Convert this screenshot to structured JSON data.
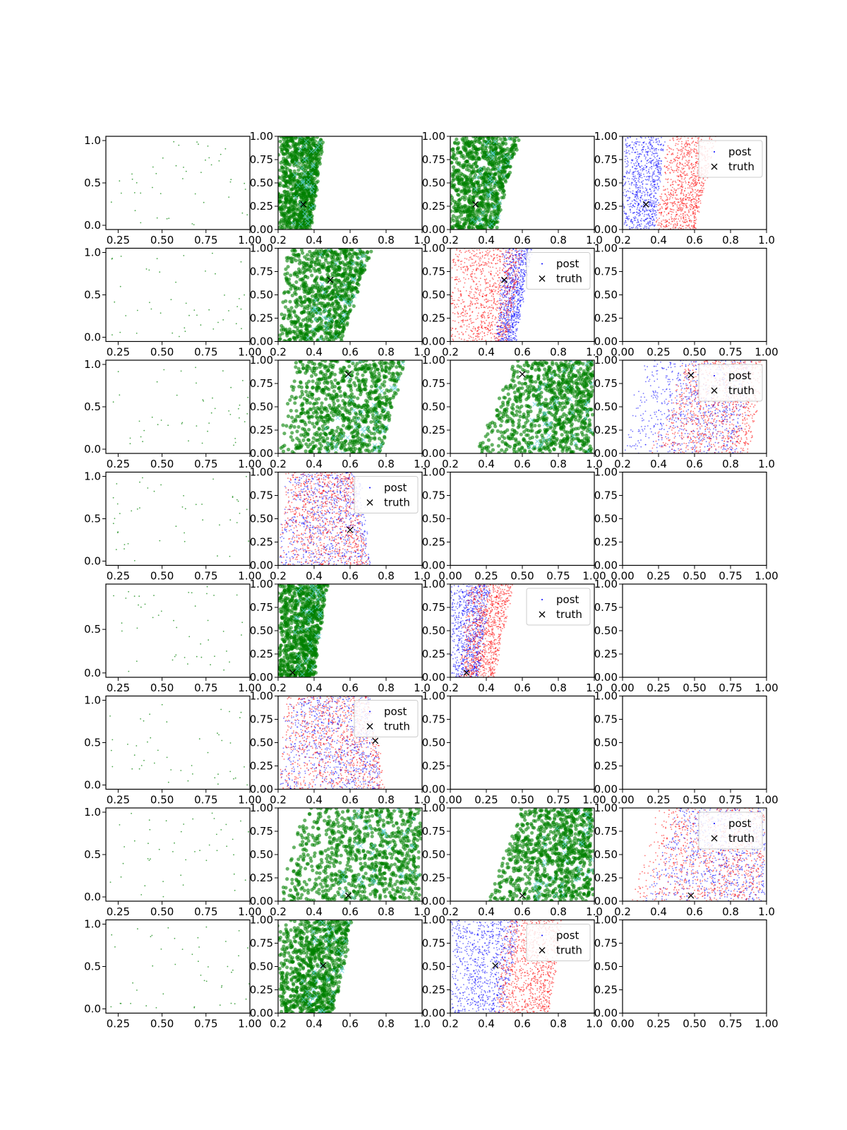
{
  "figure": {
    "nrows": 8,
    "ncols": 4,
    "colors": {
      "green": "#008000",
      "blue": "#0000ff",
      "red": "#ff0000",
      "truth": "#000000",
      "legend_frame": "#cccccc"
    },
    "legend_labels": {
      "post": "post",
      "truth": "truth"
    }
  },
  "chart_data": [
    {
      "row": 0,
      "col": 0,
      "type": "scatter",
      "kind": "scatter-sparse",
      "xlim": [
        0.18,
        1.0
      ],
      "ylim": [
        -0.05,
        1.05
      ],
      "xticks": [
        "0.25",
        "0.50",
        "0.75",
        "1.00"
      ],
      "yticks": [
        "0.0",
        "0.5",
        "1.0"
      ],
      "grid": false
    },
    {
      "row": 0,
      "col": 1,
      "type": "scatter",
      "kind": "scatter-dense-green",
      "xlim": [
        0.2,
        1.0
      ],
      "ylim": [
        0,
        1
      ],
      "xticks": [
        "0.2",
        "0.4",
        "0.6",
        "0.8",
        "1.0"
      ],
      "yticks": [
        "0.00",
        "0.25",
        "0.50",
        "0.75",
        "1.00"
      ],
      "truth": [
        0.34,
        0.27
      ],
      "band": {
        "bottom": [
          0.2,
          0.38
        ],
        "top": [
          0.2,
          0.45
        ]
      },
      "grid": false
    },
    {
      "row": 0,
      "col": 2,
      "type": "scatter",
      "kind": "scatter-dense-green",
      "xlim": [
        0.2,
        1.0
      ],
      "ylim": [
        0,
        1
      ],
      "xticks": [
        "0.2",
        "0.4",
        "0.6",
        "0.8",
        "1.0"
      ],
      "yticks": [
        "0.00",
        "0.25",
        "0.50",
        "0.75",
        "1.00"
      ],
      "truth": [
        0.34,
        0.27
      ],
      "band": {
        "bottom": [
          0.2,
          0.45
        ],
        "top": [
          0.2,
          0.58
        ]
      },
      "grid": false
    },
    {
      "row": 0,
      "col": 3,
      "type": "scatter",
      "kind": "scatter-posterior",
      "xlim": [
        0.2,
        1.0
      ],
      "ylim": [
        0,
        1
      ],
      "xticks": [
        "0.2",
        "0.4",
        "0.6",
        "0.8",
        "1.0"
      ],
      "yticks": [
        "0.00",
        "0.25",
        "0.50",
        "0.75",
        "1.00"
      ],
      "truth": [
        0.33,
        0.27
      ],
      "blue_band": {
        "bottom": [
          0.2,
          0.38
        ],
        "top": [
          0.2,
          0.43
        ]
      },
      "red_band": {
        "bottom": [
          0.38,
          0.6
        ],
        "top": [
          0.45,
          0.72
        ]
      },
      "legend": "top-right",
      "grid": false
    },
    {
      "row": 1,
      "col": 0,
      "type": "scatter",
      "kind": "scatter-sparse",
      "xlim": [
        0.18,
        1.0
      ],
      "ylim": [
        -0.05,
        1.05
      ],
      "xticks": [
        "0.25",
        "0.50",
        "0.75",
        "1.00"
      ],
      "yticks": [
        "0.0",
        "0.5",
        "1.0"
      ],
      "grid": false
    },
    {
      "row": 1,
      "col": 1,
      "type": "scatter",
      "kind": "scatter-dense-green",
      "xlim": [
        0.2,
        1.0
      ],
      "ylim": [
        0,
        1
      ],
      "xticks": [
        "0.2",
        "0.4",
        "0.6",
        "0.8",
        "1.0"
      ],
      "yticks": [
        "0.00",
        "0.25",
        "0.50",
        "0.75",
        "1.00"
      ],
      "truth": [
        0.49,
        0.66
      ],
      "band": {
        "bottom": [
          0.2,
          0.55
        ],
        "top": [
          0.25,
          0.72
        ]
      },
      "grid": false
    },
    {
      "row": 1,
      "col": 2,
      "type": "scatter",
      "kind": "scatter-posterior",
      "xlim": [
        0.2,
        1.0
      ],
      "ylim": [
        0,
        1
      ],
      "xticks": [
        "0.2",
        "0.4",
        "0.6",
        "0.8",
        "1.0"
      ],
      "yticks": [
        "0.00",
        "0.25",
        "0.50",
        "0.75",
        "1.00"
      ],
      "truth": [
        0.5,
        0.66
      ],
      "blue_band": {
        "bottom": [
          0.45,
          0.56
        ],
        "top": [
          0.5,
          0.65
        ]
      },
      "red_band": {
        "bottom": [
          0.2,
          0.52
        ],
        "top": [
          0.2,
          0.6
        ]
      },
      "legend": "top-right",
      "grid": false
    },
    {
      "row": 1,
      "col": 3,
      "type": "scatter",
      "kind": "empty",
      "xlim": [
        0,
        1
      ],
      "ylim": [
        0,
        1
      ],
      "xticks": [
        "0.00",
        "0.25",
        "0.50",
        "0.75",
        "1.00"
      ],
      "yticks": [
        "0.00",
        "0.25",
        "0.50",
        "0.75",
        "1.00"
      ],
      "grid": false
    },
    {
      "row": 2,
      "col": 0,
      "type": "scatter",
      "kind": "scatter-sparse",
      "xlim": [
        0.18,
        1.0
      ],
      "ylim": [
        -0.05,
        1.05
      ],
      "xticks": [
        "0.25",
        "0.50",
        "0.75",
        "1.00"
      ],
      "yticks": [
        "0.0",
        "0.5",
        "1.0"
      ],
      "grid": false
    },
    {
      "row": 2,
      "col": 1,
      "type": "scatter",
      "kind": "scatter-dense-green",
      "xlim": [
        0.2,
        1.0
      ],
      "ylim": [
        0,
        1
      ],
      "xticks": [
        "0.2",
        "0.4",
        "0.6",
        "0.8",
        "1.0"
      ],
      "yticks": [
        "0.00",
        "0.25",
        "0.50",
        "0.75",
        "1.00"
      ],
      "truth": [
        0.59,
        0.85
      ],
      "band": {
        "bottom": [
          0.2,
          0.78
        ],
        "top": [
          0.3,
          0.9
        ]
      },
      "grid": false
    },
    {
      "row": 2,
      "col": 2,
      "type": "scatter",
      "kind": "scatter-dense-green",
      "xlim": [
        0.2,
        1.0
      ],
      "ylim": [
        0,
        1
      ],
      "xticks": [
        "0.2",
        "0.4",
        "0.6",
        "0.8",
        "1.0"
      ],
      "yticks": [
        "0.00",
        "0.25",
        "0.50",
        "0.75",
        "1.00"
      ],
      "truth": [
        0.6,
        0.85
      ],
      "band": {
        "bottom": [
          0.35,
          0.99
        ],
        "top": [
          0.55,
          0.99
        ]
      },
      "grid": false
    },
    {
      "row": 2,
      "col": 3,
      "type": "scatter",
      "kind": "scatter-posterior",
      "xlim": [
        0.2,
        1.0
      ],
      "ylim": [
        0,
        1
      ],
      "xticks": [
        "0.2",
        "0.4",
        "0.6",
        "0.8",
        "1.0"
      ],
      "yticks": [
        "0.00",
        "0.25",
        "0.50",
        "0.75",
        "1.00"
      ],
      "truth": [
        0.58,
        0.84
      ],
      "blue_band": {
        "bottom": [
          0.2,
          0.85
        ],
        "top": [
          0.3,
          0.92
        ]
      },
      "red_band": {
        "bottom": [
          0.35,
          0.9
        ],
        "top": [
          0.55,
          0.99
        ]
      },
      "legend": "top-right",
      "grid": false
    },
    {
      "row": 3,
      "col": 0,
      "type": "scatter",
      "kind": "scatter-sparse",
      "xlim": [
        0.18,
        1.0
      ],
      "ylim": [
        -0.05,
        1.05
      ],
      "xticks": [
        "0.25",
        "0.50",
        "0.75",
        "1.00"
      ],
      "yticks": [
        "0.0",
        "0.5",
        "1.0"
      ],
      "grid": false
    },
    {
      "row": 3,
      "col": 1,
      "type": "scatter",
      "kind": "scatter-posterior",
      "xlim": [
        0.2,
        1.0
      ],
      "ylim": [
        0,
        1
      ],
      "xticks": [
        "0.2",
        "0.4",
        "0.6",
        "0.8",
        "1.0"
      ],
      "yticks": [
        "0.00",
        "0.25",
        "0.50",
        "0.75",
        "1.00"
      ],
      "truth": [
        0.6,
        0.38
      ],
      "blue_band": {
        "bottom": [
          0.2,
          0.72
        ],
        "top": [
          0.25,
          0.65
        ]
      },
      "red_band": {
        "bottom": [
          0.2,
          0.7
        ],
        "top": [
          0.25,
          0.62
        ]
      },
      "legend": "top-right",
      "grid": false
    },
    {
      "row": 3,
      "col": 2,
      "type": "scatter",
      "kind": "empty",
      "xlim": [
        0,
        1
      ],
      "ylim": [
        0,
        1
      ],
      "xticks": [
        "0.00",
        "0.25",
        "0.50",
        "0.75",
        "1.00"
      ],
      "yticks": [
        "0.00",
        "0.25",
        "0.50",
        "0.75",
        "1.00"
      ],
      "grid": false
    },
    {
      "row": 3,
      "col": 3,
      "type": "scatter",
      "kind": "empty",
      "xlim": [
        0,
        1
      ],
      "ylim": [
        0,
        1
      ],
      "xticks": [
        "0.00",
        "0.25",
        "0.50",
        "0.75",
        "1.00"
      ],
      "yticks": [
        "0.00",
        "0.25",
        "0.50",
        "0.75",
        "1.00"
      ],
      "grid": false
    },
    {
      "row": 4,
      "col": 0,
      "type": "scatter",
      "kind": "scatter-sparse",
      "xlim": [
        0.18,
        1.0
      ],
      "ylim": [
        -0.05,
        1.02
      ],
      "xticks": [
        "0.25",
        "0.50",
        "0.75",
        "1.00"
      ],
      "yticks": [
        "0.0",
        "0.5"
      ],
      "grid": false
    },
    {
      "row": 4,
      "col": 1,
      "type": "scatter",
      "kind": "scatter-dense-green",
      "xlim": [
        0.2,
        1.0
      ],
      "ylim": [
        0,
        1
      ],
      "xticks": [
        "0.2",
        "0.4",
        "0.6",
        "0.8",
        "1.0"
      ],
      "yticks": [
        "0.00",
        "0.25",
        "0.50",
        "0.75",
        "1.00"
      ],
      "truth": [
        0.28,
        0.05
      ],
      "band": {
        "bottom": [
          0.2,
          0.4
        ],
        "top": [
          0.2,
          0.47
        ]
      },
      "grid": false
    },
    {
      "row": 4,
      "col": 2,
      "type": "scatter",
      "kind": "scatter-posterior",
      "xlim": [
        0.2,
        1.0
      ],
      "ylim": [
        0,
        1
      ],
      "xticks": [
        "0.2",
        "0.4",
        "0.6",
        "0.8",
        "1.0"
      ],
      "yticks": [
        "0.00",
        "0.25",
        "0.50",
        "0.75",
        "1.00"
      ],
      "truth": [
        0.29,
        0.05
      ],
      "blue_band": {
        "bottom": [
          0.2,
          0.36
        ],
        "top": [
          0.2,
          0.42
        ]
      },
      "red_band": {
        "bottom": [
          0.25,
          0.44
        ],
        "top": [
          0.3,
          0.55
        ]
      },
      "legend": "top-right",
      "grid": false
    },
    {
      "row": 4,
      "col": 3,
      "type": "scatter",
      "kind": "empty",
      "xlim": [
        0,
        1
      ],
      "ylim": [
        0,
        1
      ],
      "xticks": [
        "0.00",
        "0.25",
        "0.50",
        "0.75",
        "1.00"
      ],
      "yticks": [
        "0.00",
        "0.25",
        "0.50",
        "0.75",
        "1.00"
      ],
      "grid": false
    },
    {
      "row": 5,
      "col": 0,
      "type": "scatter",
      "kind": "scatter-sparse",
      "xlim": [
        0.18,
        1.0
      ],
      "ylim": [
        -0.05,
        1.05
      ],
      "xticks": [
        "0.25",
        "0.50",
        "0.75",
        "1.00"
      ],
      "yticks": [
        "0.0",
        "0.5",
        "1.0"
      ],
      "grid": false
    },
    {
      "row": 5,
      "col": 1,
      "type": "scatter",
      "kind": "scatter-posterior",
      "xlim": [
        0.2,
        1.0
      ],
      "ylim": [
        0,
        1
      ],
      "xticks": [
        "0.2",
        "0.4",
        "0.6",
        "0.8",
        "1.0"
      ],
      "yticks": [
        "0.00",
        "0.25",
        "0.50",
        "0.75",
        "1.00"
      ],
      "truth": [
        0.74,
        0.52
      ],
      "blue_band": {
        "bottom": [
          0.2,
          0.78
        ],
        "top": [
          0.25,
          0.7
        ]
      },
      "red_band": {
        "bottom": [
          0.2,
          0.8
        ],
        "top": [
          0.25,
          0.7
        ]
      },
      "legend": "top-right",
      "grid": false
    },
    {
      "row": 5,
      "col": 2,
      "type": "scatter",
      "kind": "empty",
      "xlim": [
        0,
        1
      ],
      "ylim": [
        0,
        1
      ],
      "xticks": [
        "0.00",
        "0.25",
        "0.50",
        "0.75",
        "1.00"
      ],
      "yticks": [
        "0.00",
        "0.25",
        "0.50",
        "0.75",
        "1.00"
      ],
      "grid": false
    },
    {
      "row": 5,
      "col": 3,
      "type": "scatter",
      "kind": "empty",
      "xlim": [
        0,
        1
      ],
      "ylim": [
        0,
        1
      ],
      "xticks": [
        "0.00",
        "0.25",
        "0.50",
        "0.75",
        "1.00"
      ],
      "yticks": [
        "0.00",
        "0.25",
        "0.50",
        "0.75",
        "1.00"
      ],
      "grid": false
    },
    {
      "row": 6,
      "col": 0,
      "type": "scatter",
      "kind": "scatter-sparse",
      "xlim": [
        0.18,
        1.0
      ],
      "ylim": [
        -0.05,
        1.05
      ],
      "xticks": [
        "0.25",
        "0.50",
        "0.75",
        "1.00"
      ],
      "yticks": [
        "0.0",
        "0.5",
        "1.0"
      ],
      "grid": false
    },
    {
      "row": 6,
      "col": 1,
      "type": "scatter",
      "kind": "scatter-dense-green",
      "xlim": [
        0.2,
        1.0
      ],
      "ylim": [
        0,
        1
      ],
      "xticks": [
        "0.2",
        "0.4",
        "0.6",
        "0.8",
        "1.0"
      ],
      "yticks": [
        "0.00",
        "0.25",
        "0.50",
        "0.75",
        "1.00"
      ],
      "truth": [
        0.59,
        0.06
      ],
      "band": {
        "bottom": [
          0.2,
          0.99
        ],
        "top": [
          0.35,
          0.99
        ]
      },
      "grid": false
    },
    {
      "row": 6,
      "col": 2,
      "type": "scatter",
      "kind": "scatter-dense-green",
      "xlim": [
        0.2,
        1.0
      ],
      "ylim": [
        0,
        1
      ],
      "xticks": [
        "0.2",
        "0.4",
        "0.6",
        "0.8",
        "1.0"
      ],
      "yticks": [
        "0.00",
        "0.25",
        "0.50",
        "0.75",
        "1.00"
      ],
      "truth": [
        0.6,
        0.06
      ],
      "band": {
        "bottom": [
          0.4,
          0.99
        ],
        "top": [
          0.6,
          0.99
        ]
      },
      "grid": false
    },
    {
      "row": 6,
      "col": 3,
      "type": "scatter",
      "kind": "scatter-posterior",
      "xlim": [
        0.2,
        1.0
      ],
      "ylim": [
        0,
        1
      ],
      "xticks": [
        "0.2",
        "0.4",
        "0.6",
        "0.8",
        "1.0"
      ],
      "yticks": [
        "0.00",
        "0.25",
        "0.50",
        "0.75",
        "1.00"
      ],
      "truth": [
        0.58,
        0.06
      ],
      "blue_band": {
        "bottom": [
          0.3,
          0.99
        ],
        "top": [
          0.5,
          0.99
        ]
      },
      "red_band": {
        "bottom": [
          0.25,
          0.98
        ],
        "top": [
          0.4,
          0.99
        ]
      },
      "legend": "top-right",
      "grid": false
    },
    {
      "row": 7,
      "col": 0,
      "type": "scatter",
      "kind": "scatter-sparse",
      "xlim": [
        0.18,
        1.0
      ],
      "ylim": [
        -0.05,
        1.05
      ],
      "xticks": [
        "0.25",
        "0.50",
        "0.75",
        "1.00"
      ],
      "yticks": [
        "0.0",
        "0.5",
        "1.0"
      ],
      "grid": false
    },
    {
      "row": 7,
      "col": 1,
      "type": "scatter",
      "kind": "scatter-dense-green",
      "xlim": [
        0.2,
        1.0
      ],
      "ylim": [
        0,
        1
      ],
      "xticks": [
        "0.2",
        "0.4",
        "0.6",
        "0.8",
        "1.0"
      ],
      "yticks": [
        "0.00",
        "0.25",
        "0.50",
        "0.75",
        "1.00"
      ],
      "truth": [
        0.45,
        0.51
      ],
      "band": {
        "bottom": [
          0.2,
          0.5
        ],
        "top": [
          0.2,
          0.62
        ]
      },
      "grid": false
    },
    {
      "row": 7,
      "col": 2,
      "type": "scatter",
      "kind": "scatter-posterior",
      "xlim": [
        0.2,
        1.0
      ],
      "ylim": [
        0,
        1
      ],
      "xticks": [
        "0.2",
        "0.4",
        "0.6",
        "0.8",
        "1.0"
      ],
      "yticks": [
        "0.00",
        "0.25",
        "0.50",
        "0.75",
        "1.00"
      ],
      "truth": [
        0.45,
        0.51
      ],
      "blue_band": {
        "bottom": [
          0.2,
          0.5
        ],
        "top": [
          0.2,
          0.58
        ]
      },
      "red_band": {
        "bottom": [
          0.45,
          0.75
        ],
        "top": [
          0.5,
          0.82
        ]
      },
      "legend": "top-right",
      "grid": false
    },
    {
      "row": 7,
      "col": 3,
      "type": "scatter",
      "kind": "empty",
      "xlim": [
        0,
        1
      ],
      "ylim": [
        0,
        1
      ],
      "xticks": [
        "0.00",
        "0.25",
        "0.50",
        "0.75",
        "1.00"
      ],
      "yticks": [
        "0.00",
        "0.25",
        "0.50",
        "0.75",
        "1.00"
      ],
      "grid": false
    }
  ]
}
